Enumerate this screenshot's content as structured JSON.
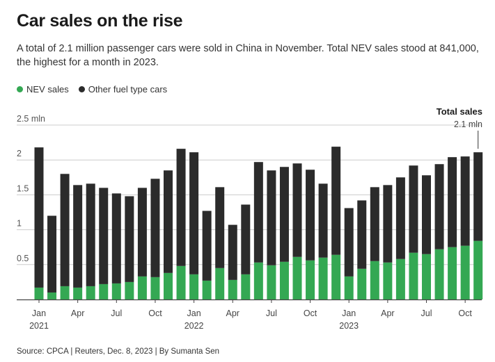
{
  "header": {
    "title": "Car sales on the rise",
    "subtitle": "A total of 2.1 million passenger cars were sold in China in November. Total NEV sales stood at 841,000, the highest for a month in 2023."
  },
  "legend": {
    "nev_label": "NEV sales",
    "other_label": "Other fuel type cars"
  },
  "colors": {
    "nev": "#34a853",
    "other": "#2b2b2b",
    "grid": "#cccccc",
    "axis": "#444444"
  },
  "annotation": {
    "title": "Total sales",
    "value": "2.1 mln"
  },
  "chart_data": {
    "type": "bar",
    "stacked": true,
    "title": "Car sales on the rise",
    "xlabel": "",
    "ylabel": "",
    "ylim": [
      0,
      2.5
    ],
    "y_ticks": [
      0.5,
      1,
      1.5,
      2,
      2.5
    ],
    "y_tick_labels": [
      "0.5",
      "1",
      "1.5",
      "2",
      "2.5 mln"
    ],
    "categories": [
      "2021-01",
      "2021-02",
      "2021-03",
      "2021-04",
      "2021-05",
      "2021-06",
      "2021-07",
      "2021-08",
      "2021-09",
      "2021-10",
      "2021-11",
      "2021-12",
      "2022-01",
      "2022-02",
      "2022-03",
      "2022-04",
      "2022-05",
      "2022-06",
      "2022-07",
      "2022-08",
      "2022-09",
      "2022-10",
      "2022-11",
      "2022-12",
      "2023-01",
      "2023-02",
      "2023-03",
      "2023-04",
      "2023-05",
      "2023-06",
      "2023-07",
      "2023-08",
      "2023-09",
      "2023-10",
      "2023-11"
    ],
    "x_tick_labels": [
      {
        "index": 0,
        "label": "Jan",
        "year": "2021"
      },
      {
        "index": 3,
        "label": "Apr",
        "year": ""
      },
      {
        "index": 6,
        "label": "Jul",
        "year": ""
      },
      {
        "index": 9,
        "label": "Oct",
        "year": ""
      },
      {
        "index": 12,
        "label": "Jan",
        "year": "2022"
      },
      {
        "index": 15,
        "label": "Apr",
        "year": ""
      },
      {
        "index": 18,
        "label": "Jul",
        "year": ""
      },
      {
        "index": 21,
        "label": "Oct",
        "year": ""
      },
      {
        "index": 24,
        "label": "Jan",
        "year": "2023"
      },
      {
        "index": 27,
        "label": "Apr",
        "year": ""
      },
      {
        "index": 30,
        "label": "Jul",
        "year": ""
      },
      {
        "index": 33,
        "label": "Oct",
        "year": ""
      }
    ],
    "series": [
      {
        "name": "NEV sales",
        "values": [
          0.17,
          0.1,
          0.19,
          0.17,
          0.19,
          0.22,
          0.23,
          0.25,
          0.33,
          0.32,
          0.38,
          0.48,
          0.36,
          0.27,
          0.45,
          0.28,
          0.36,
          0.53,
          0.49,
          0.54,
          0.61,
          0.56,
          0.6,
          0.64,
          0.33,
          0.44,
          0.55,
          0.53,
          0.58,
          0.67,
          0.65,
          0.72,
          0.75,
          0.77,
          0.84
        ]
      },
      {
        "name": "Other fuel type cars",
        "values": [
          2.01,
          1.1,
          1.61,
          1.47,
          1.47,
          1.38,
          1.29,
          1.23,
          1.27,
          1.41,
          1.47,
          1.68,
          1.75,
          1.0,
          1.16,
          0.79,
          1.0,
          1.44,
          1.36,
          1.36,
          1.34,
          1.3,
          1.06,
          1.55,
          0.98,
          0.98,
          1.06,
          1.11,
          1.17,
          1.25,
          1.13,
          1.22,
          1.29,
          1.28,
          1.27
        ]
      }
    ],
    "legend": "top-left",
    "grid": true
  },
  "footer": {
    "source": "Source: CPCA | Reuters, Dec. 8, 2023 | By Sumanta Sen"
  }
}
